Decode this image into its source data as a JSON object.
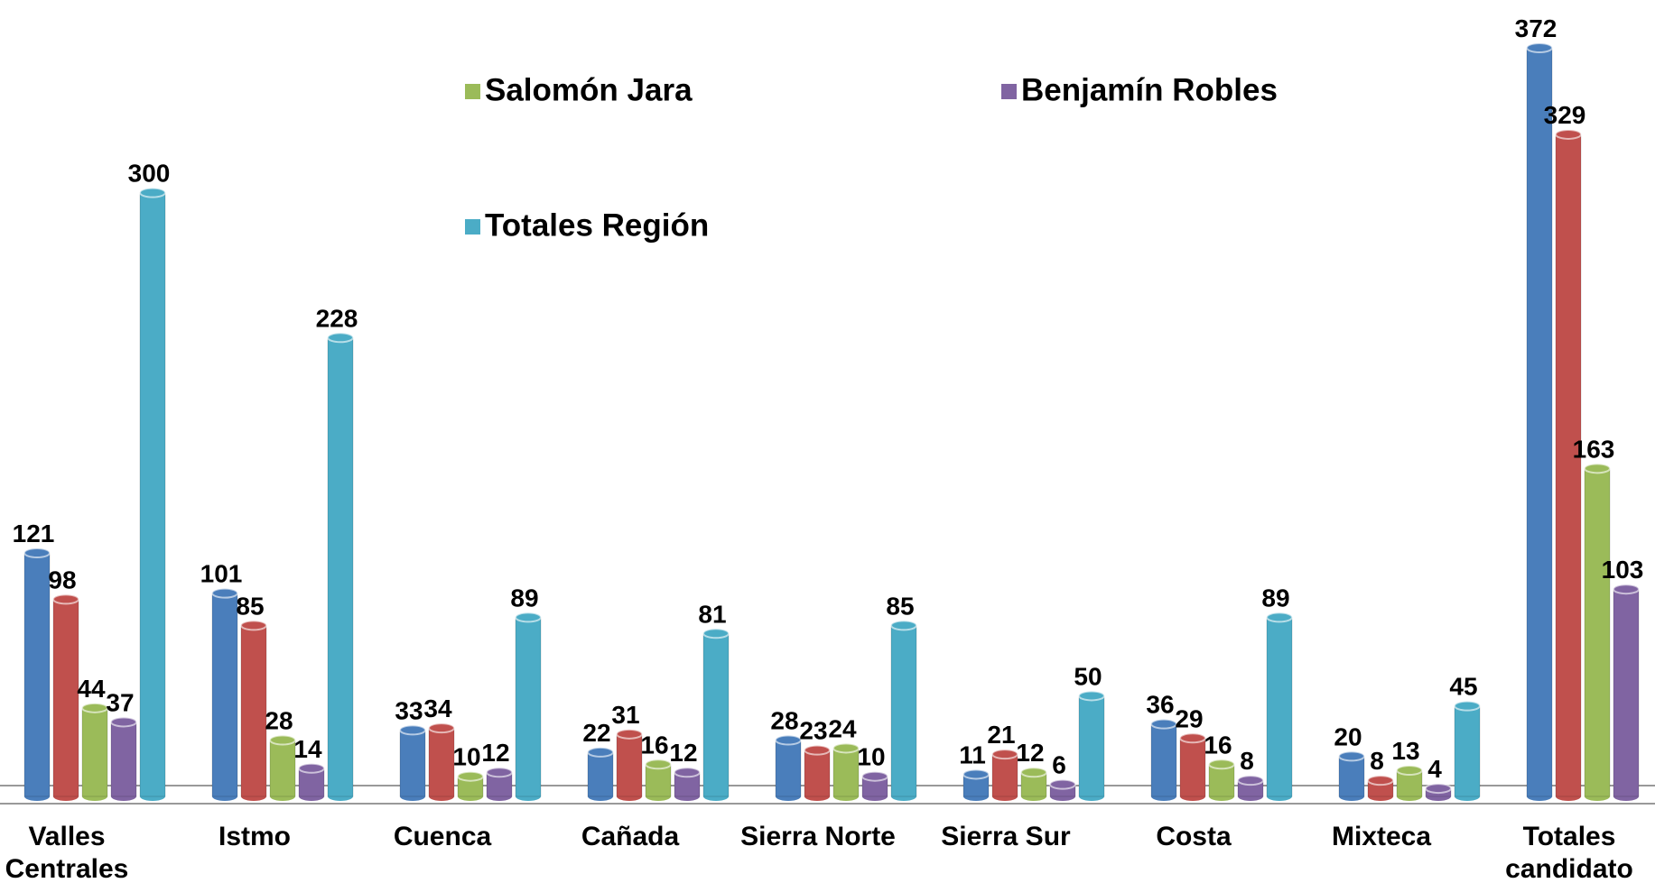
{
  "chart_data": {
    "type": "bar3d",
    "categories": [
      "Valles Centrales",
      "Istmo",
      "Cuenca",
      "Cañada",
      "Sierra Norte",
      "Sierra Sur",
      "Costa",
      "Mixteca",
      "Totales candidato"
    ],
    "series": [
      {
        "color": "#4a7ebb",
        "values": [
          121,
          101,
          33,
          22,
          28,
          11,
          36,
          20,
          372
        ]
      },
      {
        "color": "#c0504d",
        "values": [
          98,
          85,
          34,
          31,
          23,
          21,
          29,
          8,
          329
        ]
      },
      {
        "name": "Salomón Jara",
        "color": "#9bbb59",
        "values": [
          44,
          28,
          10,
          16,
          24,
          12,
          16,
          13,
          163
        ]
      },
      {
        "name": "Benjamín Robles",
        "color": "#8064a2",
        "values": [
          37,
          14,
          12,
          12,
          10,
          6,
          8,
          4,
          103
        ]
      },
      {
        "name": "Totales Región",
        "color": "#4bacc6",
        "values": [
          300,
          228,
          89,
          81,
          85,
          50,
          89,
          45,
          null
        ]
      }
    ]
  }
}
